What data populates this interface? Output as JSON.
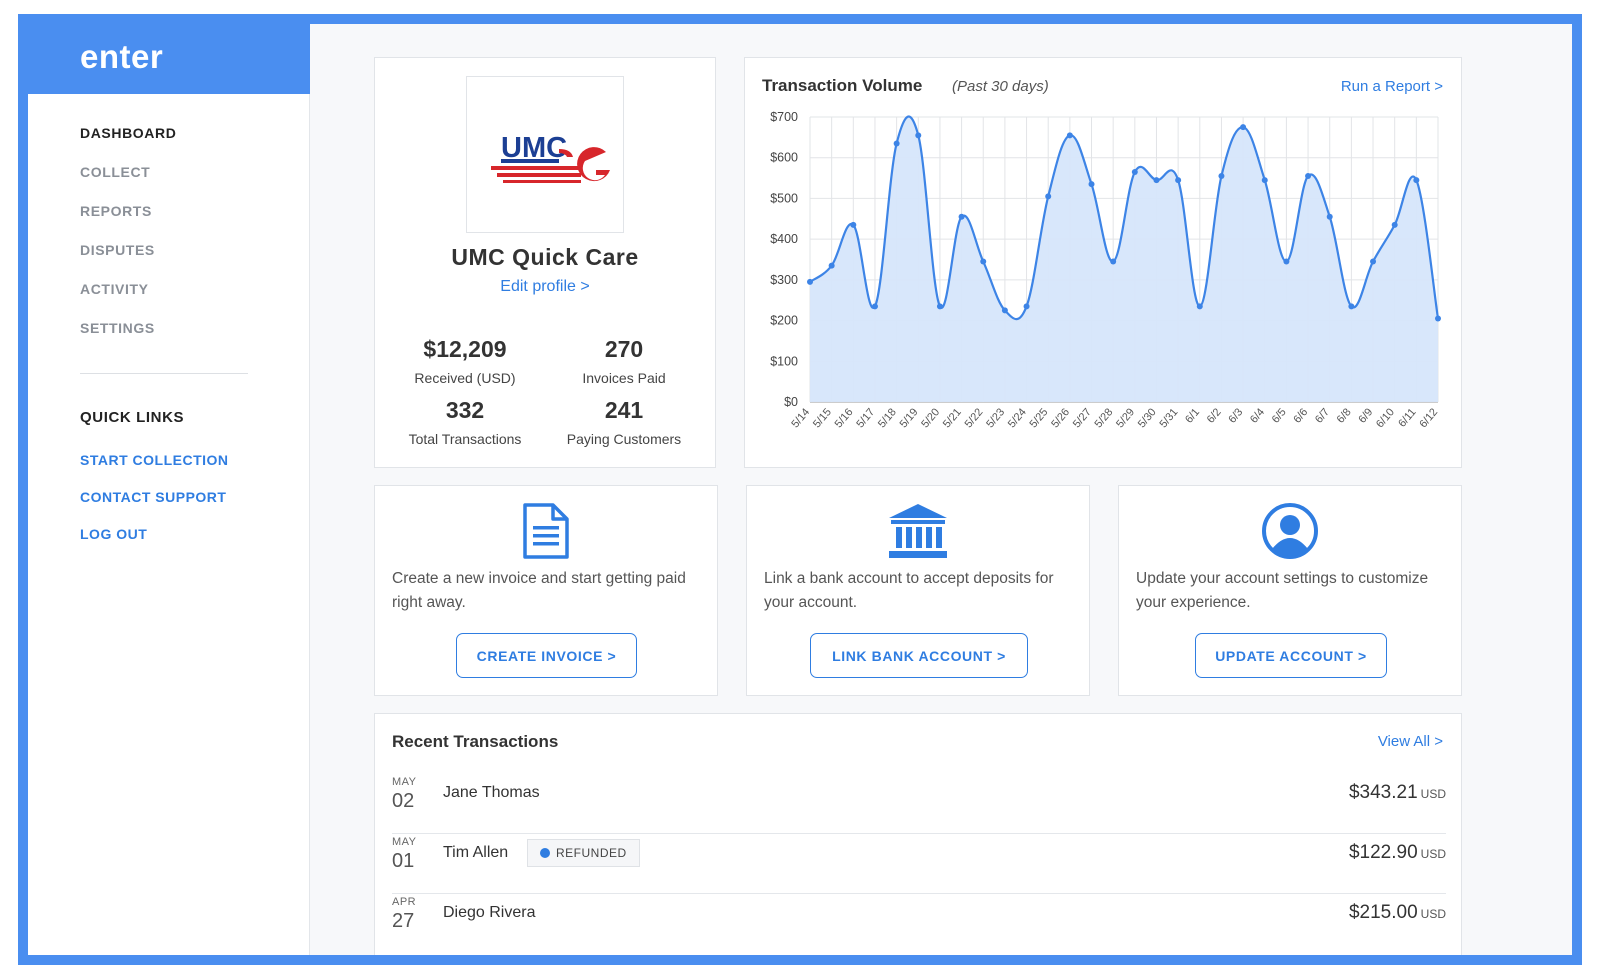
{
  "brand": "enter",
  "nav": [
    "DASHBOARD",
    "COLLECT",
    "REPORTS",
    "DISPUTES",
    "ACTIVITY",
    "SETTINGS"
  ],
  "quick_links": {
    "title": "QUICK LINKS",
    "items": [
      "START COLLECTION",
      "CONTACT SUPPORT",
      "LOG OUT"
    ]
  },
  "profile": {
    "logo_text": "UMC",
    "name": "UMC Quick Care",
    "edit_link": "Edit profile >",
    "stats": [
      {
        "value": "$12,209",
        "label": "Received (USD)"
      },
      {
        "value": "270",
        "label": "Invoices Paid"
      },
      {
        "value": "332",
        "label": "Total Transactions"
      },
      {
        "value": "241",
        "label": "Paying Customers"
      }
    ]
  },
  "chart": {
    "title": "Transaction Volume",
    "subtitle": "(Past 30 days)",
    "run_report": "Run a Report >"
  },
  "chart_data": {
    "type": "area",
    "x": [
      "5/14",
      "5/15",
      "5/16",
      "5/17",
      "5/18",
      "5/19",
      "5/20",
      "5/21",
      "5/22",
      "5/23",
      "5/24",
      "5/25",
      "5/26",
      "5/27",
      "5/28",
      "5/29",
      "5/30",
      "5/31",
      "6/1",
      "6/2",
      "6/3",
      "6/4",
      "6/5",
      "6/6",
      "6/7",
      "6/8",
      "6/9",
      "6/10",
      "6/11",
      "6/12"
    ],
    "values": [
      295,
      335,
      435,
      235,
      635,
      655,
      235,
      455,
      345,
      225,
      235,
      505,
      655,
      535,
      345,
      565,
      545,
      545,
      235,
      555,
      675,
      545,
      345,
      555,
      455,
      235,
      345,
      435,
      545,
      205
    ],
    "ylim": [
      0,
      700
    ],
    "yticks": [
      "$0",
      "$100",
      "$200",
      "$300",
      "$400",
      "$500",
      "$600",
      "$700"
    ],
    "color": "#3d84e6",
    "fill": "#d6e6fb",
    "grid": true
  },
  "actions": [
    {
      "icon": "document-icon",
      "desc": "Create a new invoice and start getting paid right away.",
      "button": "CREATE INVOICE >"
    },
    {
      "icon": "bank-icon",
      "desc": "Link a bank account to accept deposits for your account.",
      "button": "LINK BANK ACCOUNT >"
    },
    {
      "icon": "user-circle-icon",
      "desc": "Update your account settings to customize your experience.",
      "button": "UPDATE ACCOUNT >"
    }
  ],
  "transactions": {
    "title": "Recent Transactions",
    "view_all": "View All >",
    "rows": [
      {
        "month": "MAY",
        "day": "02",
        "name": "Jane Thomas",
        "badge": "",
        "amount": "$343.21",
        "currency": "USD"
      },
      {
        "month": "MAY",
        "day": "01",
        "name": "Tim Allen",
        "badge": "REFUNDED",
        "amount": "$122.90",
        "currency": "USD"
      },
      {
        "month": "APR",
        "day": "27",
        "name": "Diego Rivera",
        "badge": "",
        "amount": "$215.00",
        "currency": "USD"
      }
    ]
  },
  "colors": {
    "accent": "#2f7de1",
    "frame": "#4a8ef0"
  }
}
